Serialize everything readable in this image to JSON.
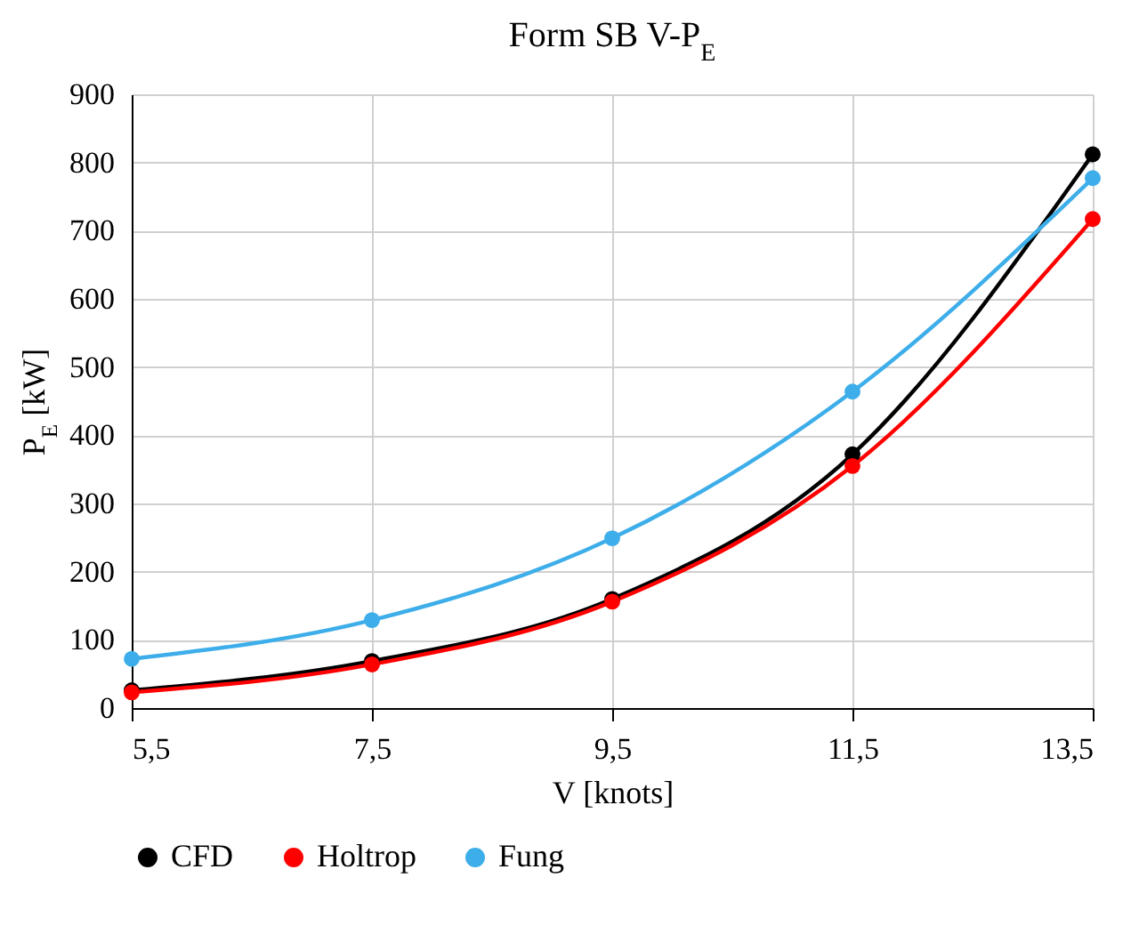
{
  "chart_data": {
    "type": "line",
    "title": "Form SB V-P$_{E}$",
    "xlabel": "V [knots]",
    "ylabel": "P$_{E}$ [kW]",
    "x": [
      5.5,
      7.5,
      9.5,
      11.5,
      13.5
    ],
    "series": [
      {
        "name": "CFD",
        "color": "#000000",
        "values": [
          26,
          69,
          160,
          372,
          812
        ]
      },
      {
        "name": "Holtrop",
        "color": "#ff0000",
        "values": [
          23,
          64,
          156,
          355,
          717
        ]
      },
      {
        "name": "Fung",
        "color": "#3daee9",
        "values": [
          72,
          129,
          249,
          464,
          777
        ]
      }
    ],
    "xlim": [
      5.5,
      13.5
    ],
    "xticks": [
      {
        "value": 5.5,
        "label": "5,5"
      },
      {
        "value": 7.5,
        "label": "7,5"
      },
      {
        "value": 9.5,
        "label": "9,5"
      },
      {
        "value": 11.5,
        "label": "11,5"
      },
      {
        "value": 13.5,
        "label": "13,5"
      }
    ],
    "ylim": [
      0,
      900
    ],
    "yticks": [
      0,
      100,
      200,
      300,
      400,
      500,
      600,
      700,
      800,
      900
    ],
    "grid": true,
    "legend": "bottom",
    "marker": "circle",
    "line_style": "solid"
  }
}
